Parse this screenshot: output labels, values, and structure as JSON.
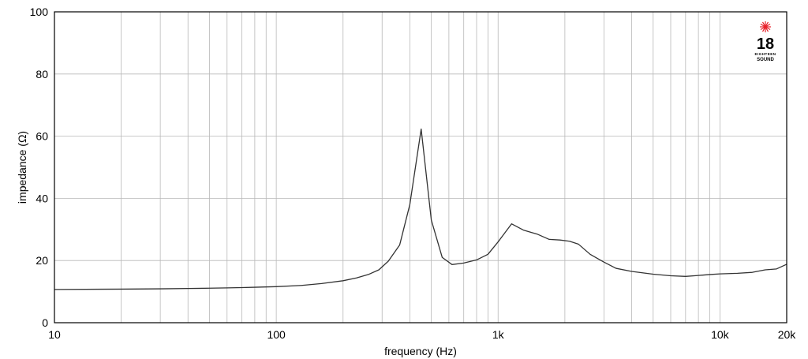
{
  "chart_data": {
    "type": "line",
    "xlabel": "frequency (Hz)",
    "ylabel": "impedance (Ω)",
    "x_scale": "log",
    "xlim": [
      10,
      20000
    ],
    "ylim": [
      0,
      100
    ],
    "grid": true,
    "x_ticks": [
      {
        "value": 10,
        "label": "10"
      },
      {
        "value": 100,
        "label": "100"
      },
      {
        "value": 1000,
        "label": "1k"
      },
      {
        "value": 10000,
        "label": "10k"
      },
      {
        "value": 20000,
        "label": "20k"
      }
    ],
    "y_ticks": [
      {
        "value": 0,
        "label": "0"
      },
      {
        "value": 20,
        "label": "20"
      },
      {
        "value": 40,
        "label": "40"
      },
      {
        "value": 60,
        "label": "60"
      },
      {
        "value": 80,
        "label": "80"
      },
      {
        "value": 100,
        "label": "100"
      }
    ],
    "series": [
      {
        "color": "#333333",
        "points": [
          [
            10,
            10.7
          ],
          [
            20,
            10.8
          ],
          [
            30,
            10.9
          ],
          [
            40,
            11.0
          ],
          [
            50,
            11.1
          ],
          [
            60,
            11.2
          ],
          [
            70,
            11.3
          ],
          [
            80,
            11.4
          ],
          [
            100,
            11.6
          ],
          [
            130,
            12.0
          ],
          [
            160,
            12.6
          ],
          [
            200,
            13.5
          ],
          [
            230,
            14.4
          ],
          [
            260,
            15.5
          ],
          [
            290,
            17.0
          ],
          [
            320,
            19.8
          ],
          [
            360,
            25.0
          ],
          [
            400,
            38.0
          ],
          [
            450,
            62.3
          ],
          [
            500,
            33.0
          ],
          [
            560,
            21.0
          ],
          [
            620,
            18.7
          ],
          [
            700,
            19.2
          ],
          [
            800,
            20.2
          ],
          [
            900,
            22.0
          ],
          [
            1000,
            26.0
          ],
          [
            1150,
            31.8
          ],
          [
            1300,
            29.8
          ],
          [
            1500,
            28.5
          ],
          [
            1700,
            26.8
          ],
          [
            1900,
            26.6
          ],
          [
            2100,
            26.2
          ],
          [
            2300,
            25.3
          ],
          [
            2600,
            22.0
          ],
          [
            3000,
            19.5
          ],
          [
            3400,
            17.5
          ],
          [
            4000,
            16.5
          ],
          [
            5000,
            15.6
          ],
          [
            6000,
            15.1
          ],
          [
            7000,
            14.9
          ],
          [
            8000,
            15.2
          ],
          [
            9000,
            15.5
          ],
          [
            10000,
            15.7
          ],
          [
            12000,
            15.9
          ],
          [
            14000,
            16.2
          ],
          [
            16000,
            17.0
          ],
          [
            18000,
            17.3
          ],
          [
            20000,
            18.8
          ]
        ]
      }
    ]
  },
  "logo": {
    "number": "18",
    "small_text": "EIGHTEEN",
    "word": "SOUND",
    "star_color": "#e8202a"
  }
}
